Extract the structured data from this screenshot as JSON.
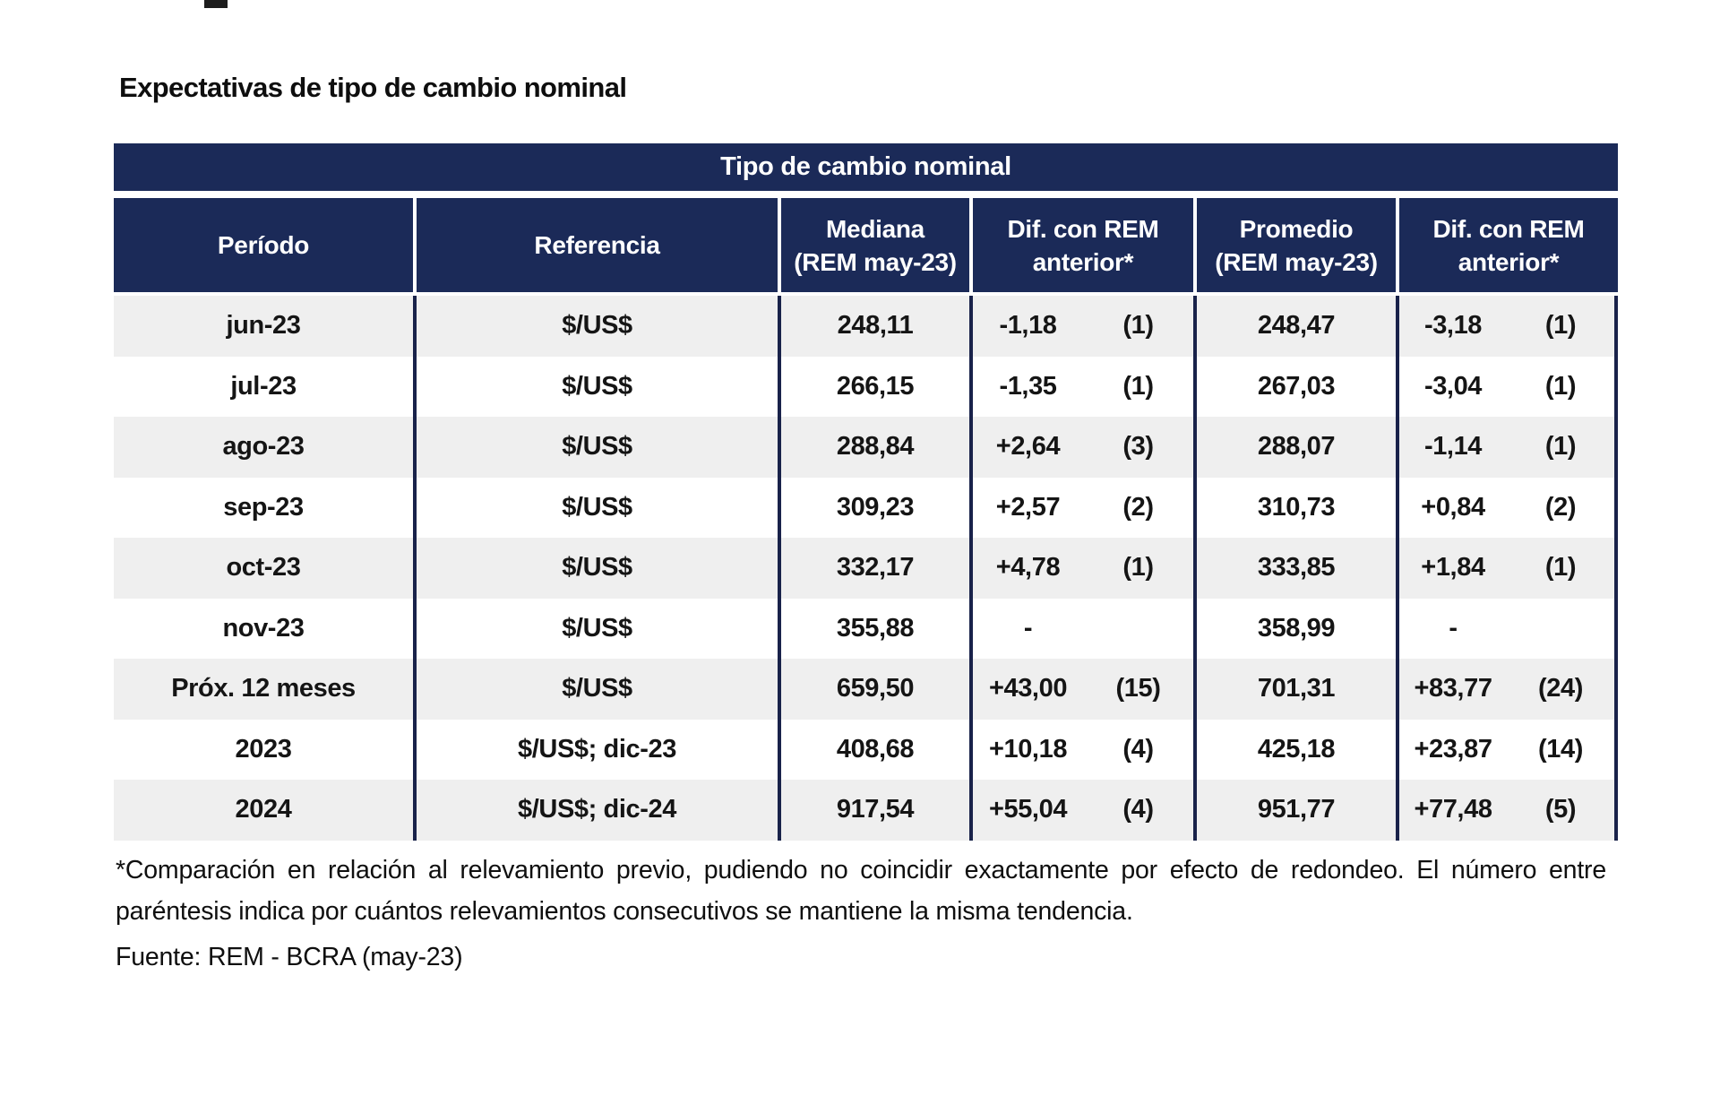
{
  "page_title": "Expectativas de tipo de cambio nominal",
  "colors": {
    "header_navy": "#1b2a58",
    "grid_line": "#19224a",
    "row_alt_gray": "#efefef",
    "row_white": "#ffffff",
    "header_text": "#ffffff",
    "body_text": "#151515"
  },
  "table": {
    "title": "Tipo de cambio nominal",
    "headers": [
      {
        "id": "periodo",
        "line1": "Período",
        "line2": ""
      },
      {
        "id": "referencia",
        "line1": "Referencia",
        "line2": ""
      },
      {
        "id": "mediana",
        "line1": "Mediana",
        "line2": "(REM may-23)"
      },
      {
        "id": "dif_mediana",
        "line1": "Dif. con REM",
        "line2": "anterior*"
      },
      {
        "id": "promedio",
        "line1": "Promedio",
        "line2": "(REM may-23)"
      },
      {
        "id": "dif_promedio",
        "line1": "Dif. con REM",
        "line2": "anterior*"
      }
    ],
    "rows": [
      {
        "periodo": "jun-23",
        "referencia": "$/US$",
        "mediana": "248,11",
        "dif_mediana": {
          "value": "-1,18",
          "count": "(1)"
        },
        "promedio": "248,47",
        "dif_promedio": {
          "value": "-3,18",
          "count": "(1)"
        }
      },
      {
        "periodo": "jul-23",
        "referencia": "$/US$",
        "mediana": "266,15",
        "dif_mediana": {
          "value": "-1,35",
          "count": "(1)"
        },
        "promedio": "267,03",
        "dif_promedio": {
          "value": "-3,04",
          "count": "(1)"
        }
      },
      {
        "periodo": "ago-23",
        "referencia": "$/US$",
        "mediana": "288,84",
        "dif_mediana": {
          "value": "+2,64",
          "count": "(3)"
        },
        "promedio": "288,07",
        "dif_promedio": {
          "value": "-1,14",
          "count": "(1)"
        }
      },
      {
        "periodo": "sep-23",
        "referencia": "$/US$",
        "mediana": "309,23",
        "dif_mediana": {
          "value": "+2,57",
          "count": "(2)"
        },
        "promedio": "310,73",
        "dif_promedio": {
          "value": "+0,84",
          "count": "(2)"
        }
      },
      {
        "periodo": "oct-23",
        "referencia": "$/US$",
        "mediana": "332,17",
        "dif_mediana": {
          "value": "+4,78",
          "count": "(1)"
        },
        "promedio": "333,85",
        "dif_promedio": {
          "value": "+1,84",
          "count": "(1)"
        }
      },
      {
        "periodo": "nov-23",
        "referencia": "$/US$",
        "mediana": "355,88",
        "dif_mediana": {
          "value": "-",
          "count": ""
        },
        "promedio": "358,99",
        "dif_promedio": {
          "value": "-",
          "count": ""
        }
      },
      {
        "periodo": "Próx. 12 meses",
        "referencia": "$/US$",
        "mediana": "659,50",
        "dif_mediana": {
          "value": "+43,00",
          "count": "(15)"
        },
        "promedio": "701,31",
        "dif_promedio": {
          "value": "+83,77",
          "count": "(24)"
        }
      },
      {
        "periodo": "2023",
        "referencia": "$/US$; dic-23",
        "mediana": "408,68",
        "dif_mediana": {
          "value": "+10,18",
          "count": "(4)"
        },
        "promedio": "425,18",
        "dif_promedio": {
          "value": "+23,87",
          "count": "(14)"
        }
      },
      {
        "periodo": "2024",
        "referencia": "$/US$; dic-24",
        "mediana": "917,54",
        "dif_mediana": {
          "value": "+55,04",
          "count": "(4)"
        },
        "promedio": "951,77",
        "dif_promedio": {
          "value": "+77,48",
          "count": "(5)"
        }
      }
    ]
  },
  "footnote": "*Comparación en relación al relevamiento previo, pudiendo no coincidir exactamente por efecto de redondeo. El número entre paréntesis indica por cuántos relevamientos consecutivos se mantiene la misma tendencia.",
  "source": "Fuente: REM - BCRA (may-23)"
}
